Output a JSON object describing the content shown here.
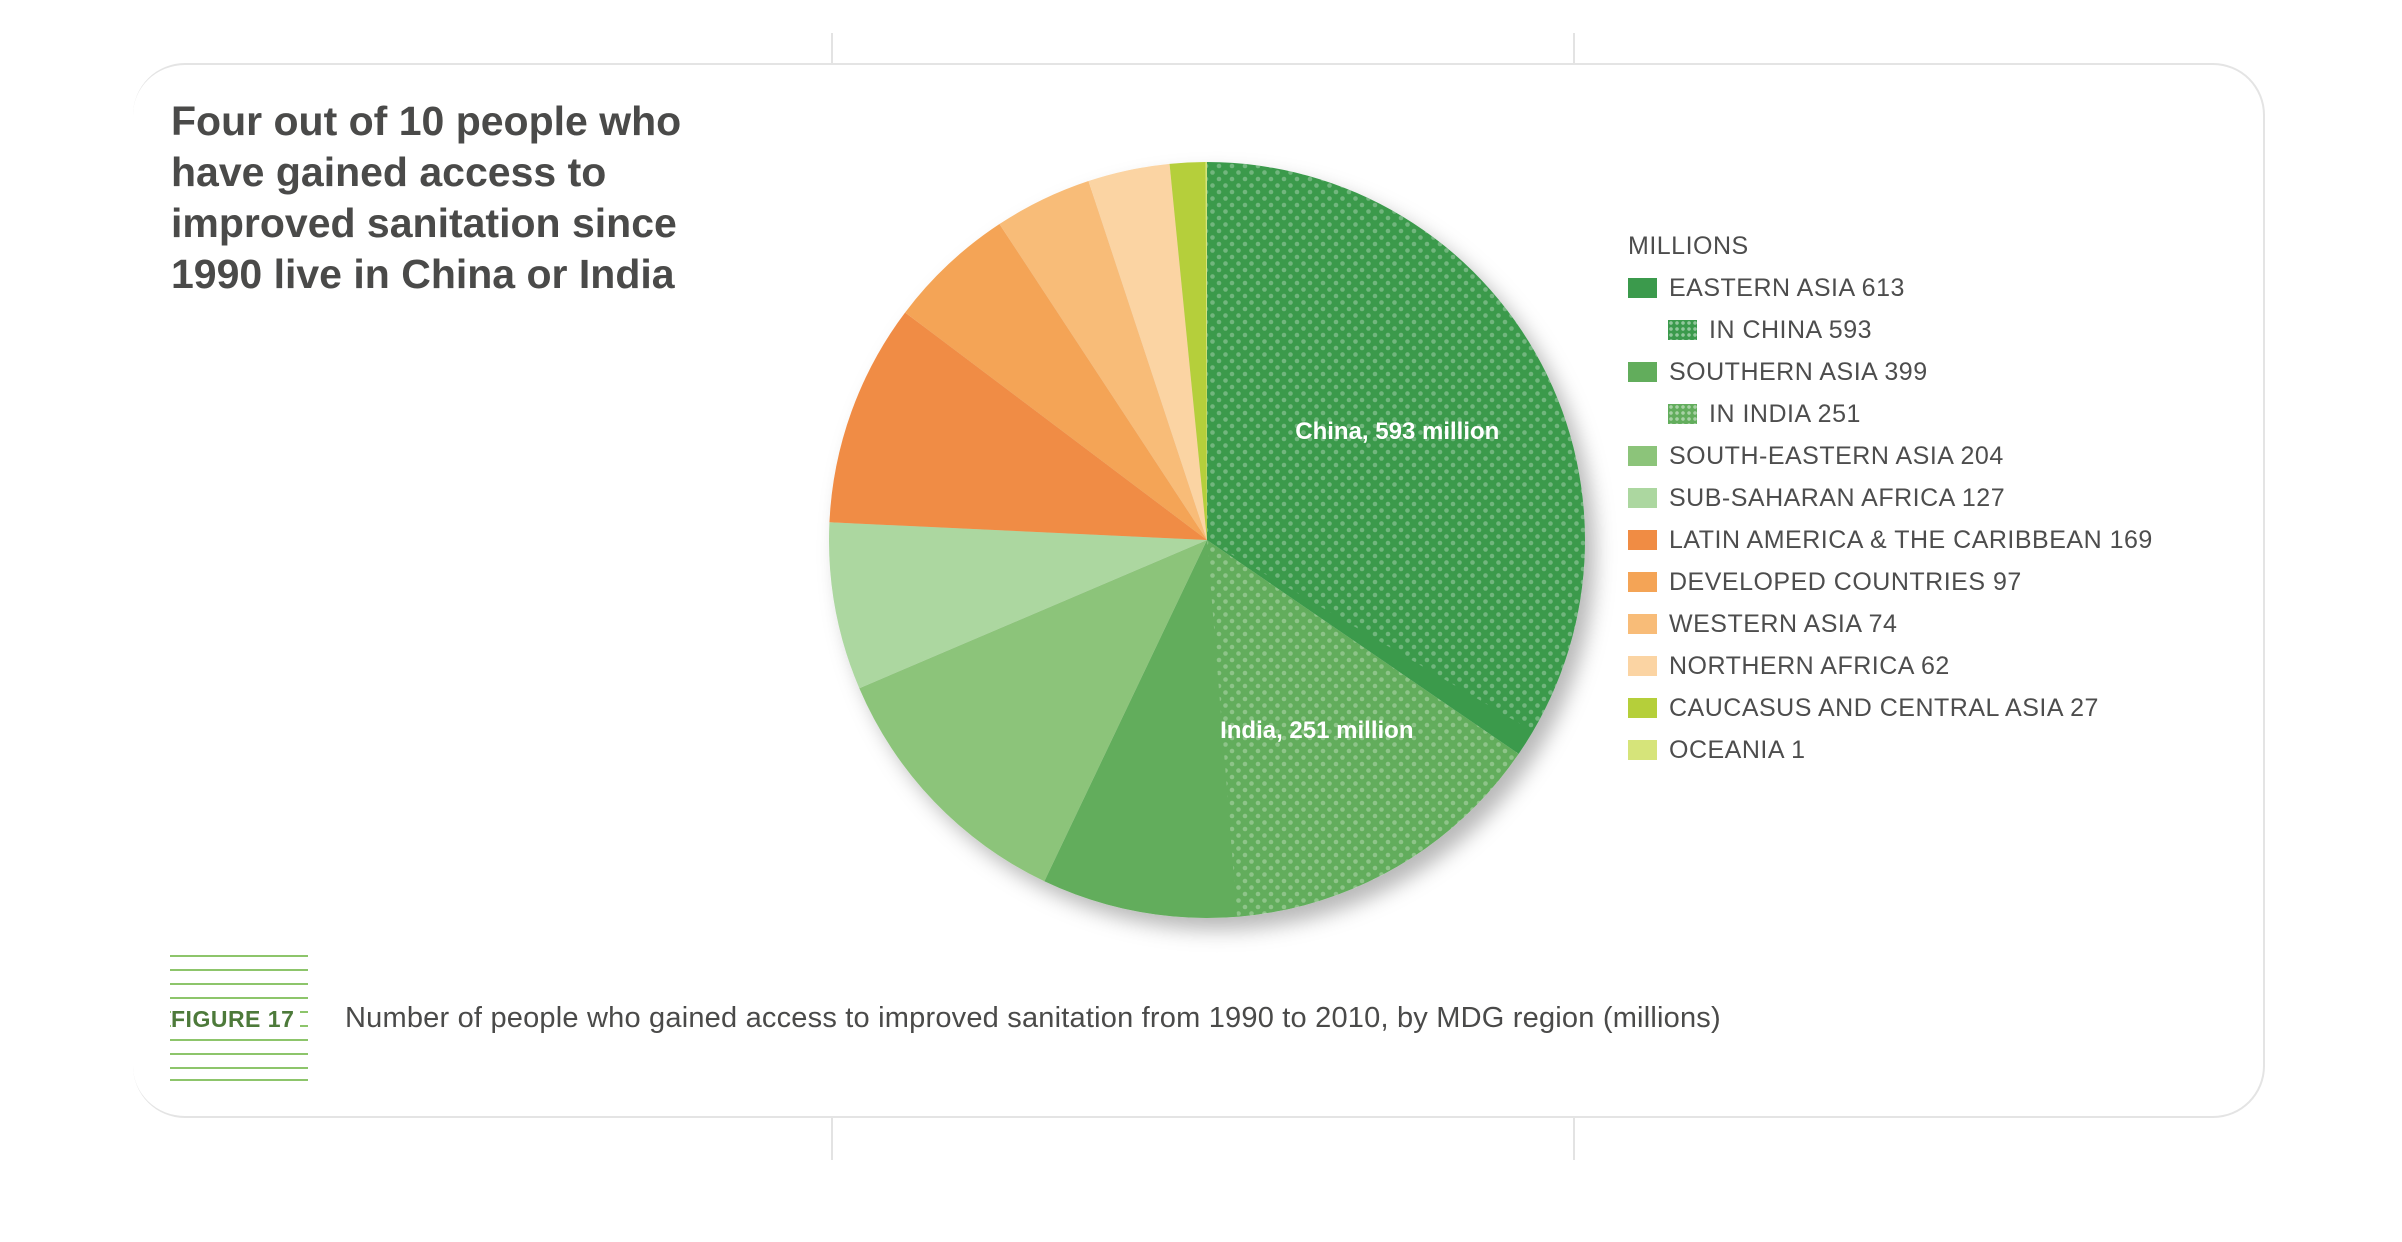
{
  "headline": "Four out of 10 people who have gained access to improved sanitation since 1990 live in China or India",
  "figure": {
    "label": "FIGURE 17",
    "caption": "Number of people who gained access to improved sanitation from 1990 to 2010, by MDG region (millions)"
  },
  "chart_data": {
    "type": "pie",
    "title": "Four out of 10 people who have gained access to improved sanitation since 1990 live in China or India",
    "unit": "MILLIONS",
    "slices": [
      {
        "name": "EASTERN ASIA",
        "value": 613,
        "color": "#3b9a4c",
        "dotted_part": {
          "name": "IN CHINA",
          "value": 593
        }
      },
      {
        "name": "SOUTHERN ASIA",
        "value": 399,
        "color": "#62ad5c",
        "dotted_part": {
          "name": "IN INDIA",
          "value": 251
        }
      },
      {
        "name": "SOUTH-EASTERN ASIA",
        "value": 204,
        "color": "#8cc47a"
      },
      {
        "name": "SUB-SAHARAN AFRICA",
        "value": 127,
        "color": "#acd7a0"
      },
      {
        "name": "LATIN AMERICA & THE CARIBBEAN",
        "value": 169,
        "color": "#f08c44"
      },
      {
        "name": "DEVELOPED COUNTRIES",
        "value": 97,
        "color": "#f4a456"
      },
      {
        "name": "WESTERN ASIA",
        "value": 74,
        "color": "#f8bc78"
      },
      {
        "name": "NORTHERN AFRICA",
        "value": 62,
        "color": "#fbd4a3"
      },
      {
        "name": "CAUCASUS AND CENTRAL ASIA",
        "value": 27,
        "color": "#b5cf3a"
      },
      {
        "name": "OCEANIA",
        "value": 1,
        "color": "#d6e47a"
      }
    ],
    "slice_labels": [
      "China, 593 million",
      "India, 251 million"
    ],
    "legend": {
      "title": "MILLIONS",
      "placement": "right",
      "items": [
        {
          "label": "EASTERN ASIA 613",
          "color": "#3b9a4c",
          "dotted": false,
          "sub": false
        },
        {
          "label": "IN CHINA 593",
          "color": "#3b9a4c",
          "dotted": true,
          "sub": true
        },
        {
          "label": "SOUTHERN ASIA 399",
          "color": "#62ad5c",
          "dotted": false,
          "sub": false
        },
        {
          "label": "IN INDIA 251",
          "color": "#62ad5c",
          "dotted": true,
          "sub": true
        },
        {
          "label": "SOUTH-EASTERN ASIA 204",
          "color": "#8cc47a",
          "dotted": false,
          "sub": false
        },
        {
          "label": "SUB-SAHARAN AFRICA 127",
          "color": "#acd7a0",
          "dotted": false,
          "sub": false
        },
        {
          "label": "LATIN AMERICA & THE CARIBBEAN 169",
          "color": "#f08c44",
          "dotted": false,
          "sub": false
        },
        {
          "label": "DEVELOPED COUNTRIES 97",
          "color": "#f4a456",
          "dotted": false,
          "sub": false
        },
        {
          "label": "WESTERN ASIA 74",
          "color": "#f8bc78",
          "dotted": false,
          "sub": false
        },
        {
          "label": "NORTHERN AFRICA 62",
          "color": "#fbd4a3",
          "dotted": false,
          "sub": false
        },
        {
          "label": "CAUCASUS AND CENTRAL ASIA 27",
          "color": "#b5cf3a",
          "dotted": false,
          "sub": false
        },
        {
          "label": "OCEANIA 1",
          "color": "#d6e47a",
          "dotted": false,
          "sub": false
        }
      ]
    }
  }
}
